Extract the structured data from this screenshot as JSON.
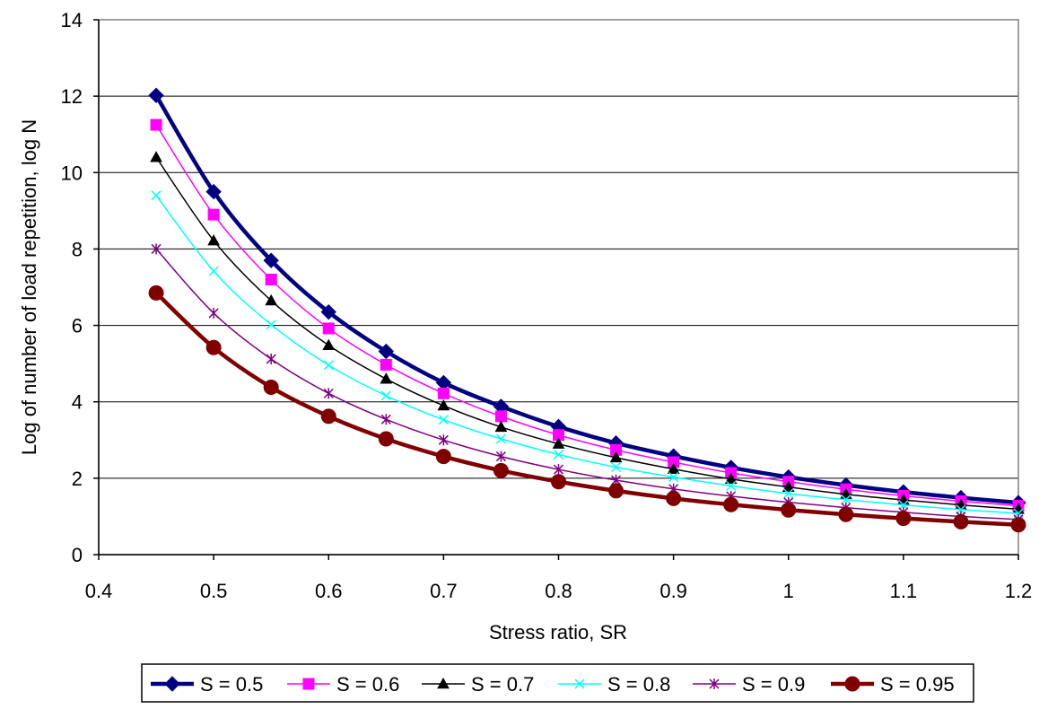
{
  "chart_data": {
    "type": "line",
    "title": "",
    "xlabel": "Stress ratio, SR",
    "ylabel": "Log of number of load repetition, log N",
    "xlim": [
      0.4,
      1.2
    ],
    "ylim": [
      0,
      14
    ],
    "xticks": [
      "0.4",
      "0.5",
      "0.6",
      "0.7",
      "0.8",
      "0.9",
      "1",
      "1.1",
      "1.2"
    ],
    "yticks": [
      "0",
      "2",
      "4",
      "6",
      "8",
      "10",
      "12",
      "14"
    ],
    "x": [
      0.45,
      0.5,
      0.55,
      0.6,
      0.65,
      0.7,
      0.75,
      0.8,
      0.85,
      0.9,
      0.95,
      1.0,
      1.05,
      1.1,
      1.15,
      1.2
    ],
    "grid": "horizontal",
    "legend_position": "bottom",
    "series": [
      {
        "name": "S = 0.5",
        "color": "#000080",
        "marker": "diamond",
        "values": [
          12.02,
          9.5,
          7.7,
          6.35,
          5.32,
          4.5,
          3.88,
          3.35,
          2.92,
          2.58,
          2.28,
          2.03,
          1.82,
          1.64,
          1.49,
          1.36
        ]
      },
      {
        "name": "S = 0.6",
        "color": "#ff00ff",
        "marker": "square",
        "values": [
          11.25,
          8.9,
          7.2,
          5.92,
          4.97,
          4.22,
          3.62,
          3.13,
          2.74,
          2.42,
          2.14,
          1.91,
          1.71,
          1.54,
          1.4,
          1.28
        ]
      },
      {
        "name": "S = 0.7",
        "color": "#000000",
        "marker": "triangle",
        "values": [
          10.4,
          8.22,
          6.65,
          5.48,
          4.6,
          3.9,
          3.34,
          2.9,
          2.54,
          2.24,
          1.98,
          1.77,
          1.58,
          1.43,
          1.3,
          1.19
        ]
      },
      {
        "name": "S = 0.8",
        "color": "#00ffff",
        "marker": "x",
        "values": [
          9.4,
          7.42,
          6.02,
          4.96,
          4.16,
          3.53,
          3.03,
          2.62,
          2.29,
          2.03,
          1.8,
          1.6,
          1.44,
          1.3,
          1.18,
          1.08
        ]
      },
      {
        "name": "S = 0.9",
        "color": "#800080",
        "marker": "star",
        "values": [
          8.0,
          6.32,
          5.12,
          4.22,
          3.54,
          3.0,
          2.57,
          2.23,
          1.95,
          1.72,
          1.53,
          1.37,
          1.23,
          1.11,
          1.0,
          0.92
        ]
      },
      {
        "name": "S = 0.95",
        "color": "#800000",
        "marker": "circle",
        "values": [
          6.85,
          5.42,
          4.38,
          3.62,
          3.03,
          2.57,
          2.2,
          1.91,
          1.67,
          1.47,
          1.31,
          1.17,
          1.05,
          0.95,
          0.86,
          0.78
        ]
      }
    ]
  }
}
